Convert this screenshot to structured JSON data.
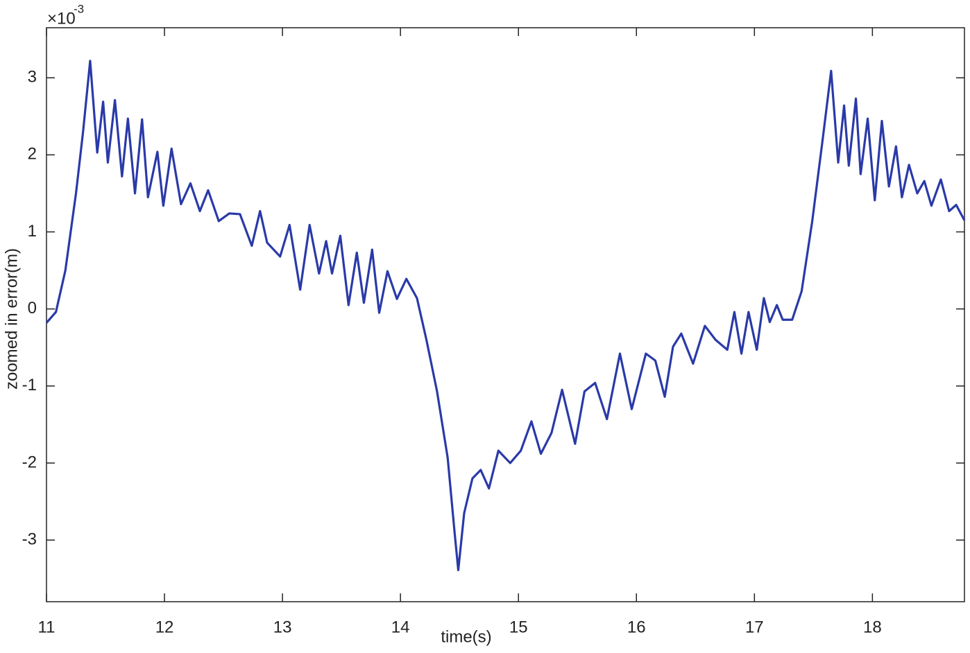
{
  "chart_data": {
    "type": "line",
    "xlabel": "time(s)",
    "ylabel": "zoomed in error(m)",
    "y_multiplier": "×10",
    "y_multiplier_exponent": "-3",
    "xlim": [
      11,
      18.78
    ],
    "ylim": [
      -3.8,
      3.65
    ],
    "xticks": [
      11,
      12,
      13,
      14,
      15,
      16,
      17,
      18
    ],
    "yticks": [
      -3,
      -2,
      -1,
      0,
      1,
      2,
      3
    ],
    "grid": false,
    "series": [
      {
        "color": "#2a3aa8",
        "x": [
          11.0,
          11.08,
          11.16,
          11.25,
          11.31,
          11.37,
          11.43,
          11.48,
          11.52,
          11.58,
          11.64,
          11.69,
          11.75,
          11.81,
          11.86,
          11.94,
          11.99,
          12.06,
          12.14,
          12.22,
          12.3,
          12.37,
          12.46,
          12.55,
          12.64,
          12.74,
          12.81,
          12.87,
          12.98,
          13.06,
          13.15,
          13.23,
          13.31,
          13.37,
          13.42,
          13.49,
          13.56,
          13.63,
          13.69,
          13.76,
          13.82,
          13.89,
          13.97,
          14.05,
          14.14,
          14.22,
          14.31,
          14.4,
          14.46,
          14.49,
          14.54,
          14.61,
          14.68,
          14.75,
          14.83,
          14.93,
          15.02,
          15.11,
          15.19,
          15.28,
          15.37,
          15.48,
          15.56,
          15.65,
          15.75,
          15.86,
          15.96,
          16.08,
          16.16,
          16.24,
          16.31,
          16.38,
          16.48,
          16.58,
          16.67,
          16.77,
          16.83,
          16.89,
          16.95,
          17.02,
          17.08,
          17.13,
          17.19,
          17.24,
          17.32,
          17.4,
          17.49,
          17.58,
          17.65,
          17.71,
          17.76,
          17.8,
          17.86,
          17.9,
          17.96,
          18.02,
          18.08,
          18.14,
          18.2,
          18.25,
          18.31,
          18.38,
          18.44,
          18.5,
          18.58,
          18.65,
          18.71,
          18.78
        ],
        "values": [
          -0.18,
          -0.04,
          0.5,
          1.5,
          2.3,
          3.22,
          2.03,
          2.69,
          1.9,
          2.71,
          1.72,
          2.47,
          1.5,
          2.46,
          1.45,
          2.04,
          1.34,
          2.08,
          1.36,
          1.63,
          1.27,
          1.54,
          1.14,
          1.24,
          1.23,
          0.82,
          1.27,
          0.86,
          0.68,
          1.09,
          0.25,
          1.09,
          0.46,
          0.88,
          0.46,
          0.95,
          0.05,
          0.73,
          0.08,
          0.77,
          -0.05,
          0.49,
          0.13,
          0.39,
          0.14,
          -0.4,
          -1.07,
          -1.93,
          -2.92,
          -3.39,
          -2.65,
          -2.2,
          -2.09,
          -2.33,
          -1.84,
          -2.0,
          -1.84,
          -1.46,
          -1.88,
          -1.61,
          -1.05,
          -1.75,
          -1.07,
          -0.96,
          -1.43,
          -0.58,
          -1.3,
          -0.58,
          -0.67,
          -1.14,
          -0.49,
          -0.32,
          -0.71,
          -0.22,
          -0.4,
          -0.53,
          -0.04,
          -0.58,
          -0.04,
          -0.53,
          0.14,
          -0.17,
          0.05,
          -0.14,
          -0.14,
          0.23,
          1.14,
          2.22,
          3.09,
          1.9,
          2.64,
          1.86,
          2.73,
          1.75,
          2.47,
          1.41,
          2.44,
          1.59,
          2.11,
          1.45,
          1.87,
          1.5,
          1.66,
          1.34,
          1.68,
          1.27,
          1.35,
          1.15
        ]
      }
    ]
  }
}
